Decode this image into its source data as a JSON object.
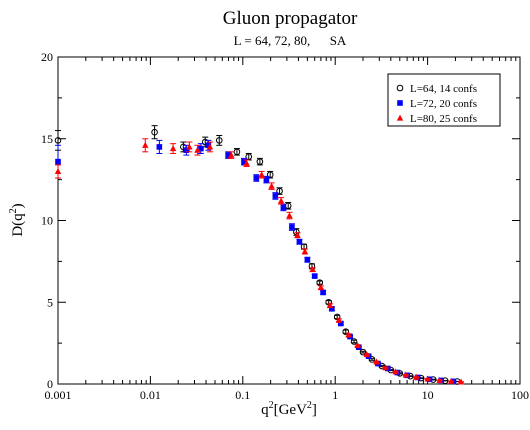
{
  "chart_data": {
    "type": "scatter",
    "title": "Gluon propagator",
    "subtitle": "L = 64, 72, 80,      SA",
    "xlabel": {
      "base": "q",
      "sup": "2",
      "unit_open": "[GeV",
      "unit_sup": "2",
      "unit_close": "]"
    },
    "ylabel": {
      "base": "D(q",
      "sup": "2",
      "close": ")"
    },
    "x_scale": "log",
    "xlim": [
      0.001,
      100
    ],
    "ylim": [
      0,
      20
    ],
    "x_ticks": [
      {
        "value": 0.001,
        "label": "0.001"
      },
      {
        "value": 0.01,
        "label": "0.01"
      },
      {
        "value": 0.1,
        "label": "0.1"
      },
      {
        "value": 1,
        "label": "1"
      },
      {
        "value": 10,
        "label": "10"
      },
      {
        "value": 100,
        "label": "100"
      }
    ],
    "y_ticks": [
      {
        "value": 0,
        "label": "0"
      },
      {
        "value": 5,
        "label": "5"
      },
      {
        "value": 10,
        "label": "10"
      },
      {
        "value": 15,
        "label": "15"
      },
      {
        "value": 20,
        "label": "20"
      }
    ],
    "grid": false,
    "legend_position": "top-right",
    "series": [
      {
        "name": "L=64,  14 confs",
        "marker": "open-circle",
        "color": "#000000",
        "points": [
          {
            "x": 0.001,
            "y": 14.9,
            "err": 0.6
          },
          {
            "x": 0.0111,
            "y": 15.4,
            "err": 0.4
          },
          {
            "x": 0.0227,
            "y": 14.5,
            "err": 0.3
          },
          {
            "x": 0.0392,
            "y": 14.8,
            "err": 0.3
          },
          {
            "x": 0.0556,
            "y": 14.9,
            "err": 0.3
          },
          {
            "x": 0.0864,
            "y": 14.2,
            "err": 0.2
          },
          {
            "x": 0.116,
            "y": 13.9,
            "err": 0.2
          },
          {
            "x": 0.153,
            "y": 13.6,
            "err": 0.2
          },
          {
            "x": 0.198,
            "y": 12.8,
            "err": 0.2
          },
          {
            "x": 0.25,
            "y": 11.8,
            "err": 0.2
          },
          {
            "x": 0.31,
            "y": 10.9,
            "err": 0.2
          },
          {
            "x": 0.38,
            "y": 9.3,
            "err": 0.2
          },
          {
            "x": 0.46,
            "y": 8.4,
            "err": 0.15
          },
          {
            "x": 0.56,
            "y": 7.2,
            "err": 0.15
          },
          {
            "x": 0.68,
            "y": 6.2,
            "err": 0.1
          },
          {
            "x": 0.85,
            "y": 5.0,
            "err": 0.1
          },
          {
            "x": 1.05,
            "y": 4.1,
            "err": 0.1
          },
          {
            "x": 1.3,
            "y": 3.2,
            "err": 0.1
          },
          {
            "x": 1.6,
            "y": 2.6,
            "err": 0.08
          },
          {
            "x": 2.0,
            "y": 1.95,
            "err": 0.05
          },
          {
            "x": 2.5,
            "y": 1.5,
            "err": 0.05
          },
          {
            "x": 3.2,
            "y": 1.1,
            "err": 0.04
          },
          {
            "x": 4.0,
            "y": 0.85,
            "err": 0.03
          },
          {
            "x": 5.0,
            "y": 0.65,
            "err": 0.03
          },
          {
            "x": 6.5,
            "y": 0.48,
            "err": 0.02
          },
          {
            "x": 8.5,
            "y": 0.36,
            "err": 0.02
          },
          {
            "x": 11.5,
            "y": 0.27,
            "err": 0.02
          },
          {
            "x": 15.5,
            "y": 0.2,
            "err": 0.01
          },
          {
            "x": 21.0,
            "y": 0.15,
            "err": 0.01
          }
        ]
      },
      {
        "name": "L=72,  20 confs",
        "marker": "filled-square",
        "color": "#0000ff",
        "points": [
          {
            "x": 0.001,
            "y": 13.6,
            "err": 1.0
          },
          {
            "x": 0.0125,
            "y": 14.5,
            "err": 0.4
          },
          {
            "x": 0.0245,
            "y": 14.3,
            "err": 0.3
          },
          {
            "x": 0.0352,
            "y": 14.4,
            "err": 0.3
          },
          {
            "x": 0.0424,
            "y": 14.6,
            "err": 0.3
          },
          {
            "x": 0.0694,
            "y": 14.0,
            "err": 0.2
          },
          {
            "x": 0.103,
            "y": 13.6,
            "err": 0.2
          },
          {
            "x": 0.14,
            "y": 12.6,
            "err": 0.2
          },
          {
            "x": 0.18,
            "y": 12.5,
            "err": 0.2
          },
          {
            "x": 0.225,
            "y": 11.5,
            "err": 0.2
          },
          {
            "x": 0.275,
            "y": 10.8,
            "err": 0.2
          },
          {
            "x": 0.34,
            "y": 9.6,
            "err": 0.2
          },
          {
            "x": 0.41,
            "y": 8.7,
            "err": 0.15
          },
          {
            "x": 0.5,
            "y": 7.6,
            "err": 0.15
          },
          {
            "x": 0.6,
            "y": 6.6,
            "err": 0.1
          },
          {
            "x": 0.74,
            "y": 5.6,
            "err": 0.1
          },
          {
            "x": 0.92,
            "y": 4.6,
            "err": 0.1
          },
          {
            "x": 1.15,
            "y": 3.7,
            "err": 0.08
          },
          {
            "x": 1.45,
            "y": 2.9,
            "err": 0.07
          },
          {
            "x": 1.8,
            "y": 2.25,
            "err": 0.05
          },
          {
            "x": 2.3,
            "y": 1.7,
            "err": 0.05
          },
          {
            "x": 2.9,
            "y": 1.25,
            "err": 0.04
          },
          {
            "x": 3.7,
            "y": 0.95,
            "err": 0.03
          },
          {
            "x": 4.7,
            "y": 0.7,
            "err": 0.03
          },
          {
            "x": 6.0,
            "y": 0.53,
            "err": 0.02
          },
          {
            "x": 7.8,
            "y": 0.4,
            "err": 0.02
          },
          {
            "x": 10.5,
            "y": 0.29,
            "err": 0.02
          },
          {
            "x": 14.0,
            "y": 0.22,
            "err": 0.01
          },
          {
            "x": 19.0,
            "y": 0.16,
            "err": 0.01
          }
        ]
      },
      {
        "name": "L=80,  25 confs",
        "marker": "filled-triangle",
        "color": "#ff0000",
        "points": [
          {
            "x": 0.001,
            "y": 13.0,
            "err": 0.4
          },
          {
            "x": 0.0088,
            "y": 14.6,
            "err": 0.4
          },
          {
            "x": 0.0176,
            "y": 14.4,
            "err": 0.3
          },
          {
            "x": 0.0264,
            "y": 14.5,
            "err": 0.3
          },
          {
            "x": 0.0323,
            "y": 14.3,
            "err": 0.3
          },
          {
            "x": 0.0441,
            "y": 14.5,
            "err": 0.3
          },
          {
            "x": 0.075,
            "y": 14.0,
            "err": 0.2
          },
          {
            "x": 0.11,
            "y": 13.5,
            "err": 0.2
          },
          {
            "x": 0.16,
            "y": 12.8,
            "err": 0.2
          },
          {
            "x": 0.205,
            "y": 12.1,
            "err": 0.2
          },
          {
            "x": 0.26,
            "y": 11.2,
            "err": 0.2
          },
          {
            "x": 0.32,
            "y": 10.3,
            "err": 0.2
          },
          {
            "x": 0.39,
            "y": 9.1,
            "err": 0.15
          },
          {
            "x": 0.47,
            "y": 8.1,
            "err": 0.15
          },
          {
            "x": 0.57,
            "y": 7.0,
            "err": 0.1
          },
          {
            "x": 0.7,
            "y": 5.9,
            "err": 0.1
          },
          {
            "x": 0.88,
            "y": 4.8,
            "err": 0.1
          },
          {
            "x": 1.1,
            "y": 3.9,
            "err": 0.08
          },
          {
            "x": 1.4,
            "y": 3.0,
            "err": 0.07
          },
          {
            "x": 1.75,
            "y": 2.35,
            "err": 0.05
          },
          {
            "x": 2.2,
            "y": 1.8,
            "err": 0.05
          },
          {
            "x": 2.8,
            "y": 1.35,
            "err": 0.04
          },
          {
            "x": 3.5,
            "y": 1.0,
            "err": 0.03
          },
          {
            "x": 4.5,
            "y": 0.75,
            "err": 0.03
          },
          {
            "x": 5.8,
            "y": 0.56,
            "err": 0.02
          },
          {
            "x": 7.5,
            "y": 0.42,
            "err": 0.02
          },
          {
            "x": 10.0,
            "y": 0.31,
            "err": 0.02
          },
          {
            "x": 13.5,
            "y": 0.23,
            "err": 0.01
          },
          {
            "x": 18.0,
            "y": 0.17,
            "err": 0.01
          },
          {
            "x": 23.0,
            "y": 0.13,
            "err": 0.01
          }
        ]
      }
    ]
  }
}
